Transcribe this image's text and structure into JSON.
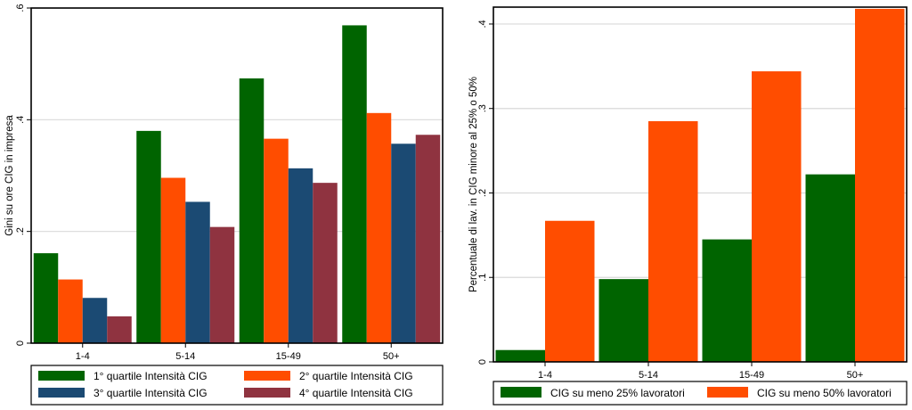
{
  "chart_data": [
    {
      "type": "bar",
      "title": "",
      "xlabel": "",
      "ylabel": "Gini su ore CIG in impresa",
      "ylim": [
        0,
        0.6
      ],
      "yticks": [
        0,
        0.2,
        0.4,
        0.6
      ],
      "ytick_labels": [
        "0",
        ".2",
        ".4",
        ".6"
      ],
      "grid": true,
      "legend_position": "bottom",
      "categories": [
        "1-4",
        "5-14",
        "15-49",
        "50+"
      ],
      "series": [
        {
          "name": "1° quartile Intensità CIG",
          "color": "#006400",
          "values": [
            0.161,
            0.38,
            0.474,
            0.569
          ]
        },
        {
          "name": "2° quartile Intensità CIG",
          "color": "#ff4d00",
          "values": [
            0.114,
            0.296,
            0.366,
            0.412
          ]
        },
        {
          "name": "3° quartile Intensità CIG",
          "color": "#1b4a73",
          "values": [
            0.081,
            0.253,
            0.313,
            0.357
          ]
        },
        {
          "name": "4° quartile Intensità CIG",
          "color": "#8f3340",
          "values": [
            0.048,
            0.208,
            0.287,
            0.373
          ]
        }
      ]
    },
    {
      "type": "bar",
      "title": "",
      "xlabel": "",
      "ylabel": "Percentuale di lav. in CIG minore al 25% o 50%",
      "ylim": [
        0,
        0.42
      ],
      "yticks": [
        0,
        0.1,
        0.2,
        0.3,
        0.4
      ],
      "ytick_labels": [
        "0",
        ".1",
        ".2",
        ".3",
        ".4"
      ],
      "grid": true,
      "legend_position": "bottom",
      "categories": [
        "1-4",
        "5-14",
        "15-49",
        "50+"
      ],
      "series": [
        {
          "name": "CIG su meno 25% lavoratori",
          "color": "#006400",
          "values": [
            0.014,
            0.098,
            0.145,
            0.222
          ]
        },
        {
          "name": "CIG su meno 50% lavoratori",
          "color": "#ff4d00",
          "values": [
            0.167,
            0.285,
            0.344,
            0.418
          ]
        }
      ]
    }
  ]
}
